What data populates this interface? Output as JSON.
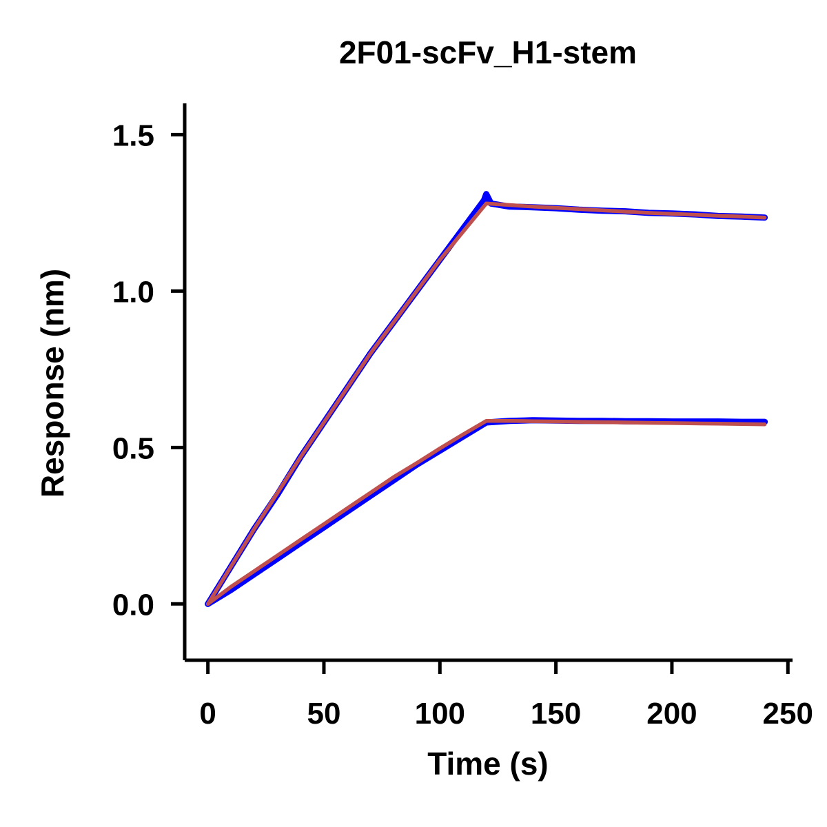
{
  "chart_data": {
    "type": "line",
    "title": "2F01-scFv_H1-stem",
    "xlabel": "Time (s)",
    "ylabel": "Response (nm)",
    "xlim": [
      -10,
      252
    ],
    "ylim": [
      -0.18,
      1.6
    ],
    "xticks": [
      0,
      50,
      100,
      150,
      200,
      250
    ],
    "xtick_labels": [
      "0",
      "50",
      "100",
      "150",
      "200",
      "250"
    ],
    "yticks": [
      0.0,
      0.5,
      1.0,
      1.5
    ],
    "ytick_labels": [
      "0.0",
      "0.5",
      "1.0",
      "1.5"
    ],
    "grid": false,
    "legend": "none",
    "colors": {
      "measured": "#0000ff",
      "fit": "#c0504d",
      "axis": "#000000"
    },
    "series": [
      {
        "role": "measured",
        "x": [
          0,
          10,
          20,
          30,
          40,
          50,
          60,
          70,
          80,
          90,
          100,
          110,
          119,
          120,
          122,
          130,
          140,
          150,
          160,
          170,
          180,
          190,
          200,
          210,
          220,
          230,
          240
        ],
        "y": [
          0.0,
          0.12,
          0.24,
          0.35,
          0.47,
          0.58,
          0.69,
          0.8,
          0.9,
          1.0,
          1.1,
          1.2,
          1.29,
          1.31,
          1.28,
          1.27,
          1.268,
          1.265,
          1.26,
          1.257,
          1.255,
          1.25,
          1.248,
          1.245,
          1.24,
          1.238,
          1.235
        ]
      },
      {
        "role": "fit",
        "x": [
          0,
          10,
          20,
          30,
          40,
          50,
          60,
          70,
          80,
          90,
          100,
          110,
          120,
          130,
          140,
          150,
          160,
          170,
          180,
          190,
          200,
          210,
          220,
          230,
          240
        ],
        "y": [
          0.0,
          0.12,
          0.24,
          0.355,
          0.47,
          0.58,
          0.69,
          0.8,
          0.9,
          1.0,
          1.1,
          1.19,
          1.28,
          1.275,
          1.27,
          1.266,
          1.262,
          1.258,
          1.254,
          1.25,
          1.247,
          1.244,
          1.241,
          1.238,
          1.235
        ]
      },
      {
        "role": "measured",
        "x": [
          0,
          10,
          20,
          30,
          40,
          50,
          60,
          70,
          80,
          90,
          100,
          110,
          120,
          130,
          140,
          150,
          160,
          170,
          180,
          190,
          200,
          210,
          220,
          230,
          240
        ],
        "y": [
          0.0,
          0.045,
          0.095,
          0.145,
          0.195,
          0.245,
          0.295,
          0.345,
          0.395,
          0.445,
          0.49,
          0.535,
          0.58,
          0.585,
          0.587,
          0.586,
          0.585,
          0.585,
          0.584,
          0.584,
          0.583,
          0.583,
          0.583,
          0.582,
          0.582
        ]
      },
      {
        "role": "fit",
        "x": [
          0,
          10,
          20,
          30,
          40,
          50,
          60,
          70,
          80,
          90,
          100,
          110,
          120,
          130,
          140,
          150,
          160,
          170,
          180,
          190,
          200,
          210,
          220,
          230,
          240
        ],
        "y": [
          0.0,
          0.055,
          0.105,
          0.155,
          0.205,
          0.255,
          0.305,
          0.355,
          0.405,
          0.45,
          0.497,
          0.542,
          0.585,
          0.585,
          0.584,
          0.583,
          0.582,
          0.581,
          0.58,
          0.579,
          0.578,
          0.577,
          0.576,
          0.575,
          0.574
        ]
      }
    ]
  }
}
